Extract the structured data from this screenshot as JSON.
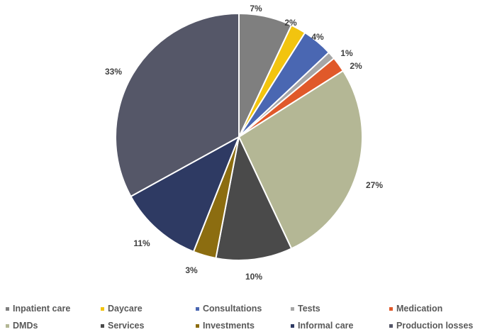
{
  "chart_data": {
    "type": "pie",
    "title": "",
    "legend_position": "bottom",
    "start_angle_deg": 0,
    "direction": "clockwise",
    "slices": [
      {
        "name": "Inpatient care",
        "value": 7,
        "label": "7%",
        "color": "#7f7f7f"
      },
      {
        "name": "Daycare",
        "value": 2,
        "label": "2%",
        "color": "#f2c40f"
      },
      {
        "name": "Consultations",
        "value": 4,
        "label": "4%",
        "color": "#4a67b2"
      },
      {
        "name": "Tests",
        "value": 1,
        "label": "1%",
        "color": "#a6a6a6"
      },
      {
        "name": "Medication",
        "value": 2,
        "label": "2%",
        "color": "#e0592a"
      },
      {
        "name": "DMDs",
        "value": 27,
        "label": "27%",
        "color": "#b4b795"
      },
      {
        "name": "Services",
        "value": 10,
        "label": "10%",
        "color": "#4a4a4a"
      },
      {
        "name": "Investments",
        "value": 3,
        "label": "3%",
        "color": "#8c6d10"
      },
      {
        "name": "Informal care",
        "value": 11,
        "label": "11%",
        "color": "#2e3a63"
      },
      {
        "name": "Production losses",
        "value": 33,
        "label": "33%",
        "color": "#555768"
      }
    ]
  }
}
